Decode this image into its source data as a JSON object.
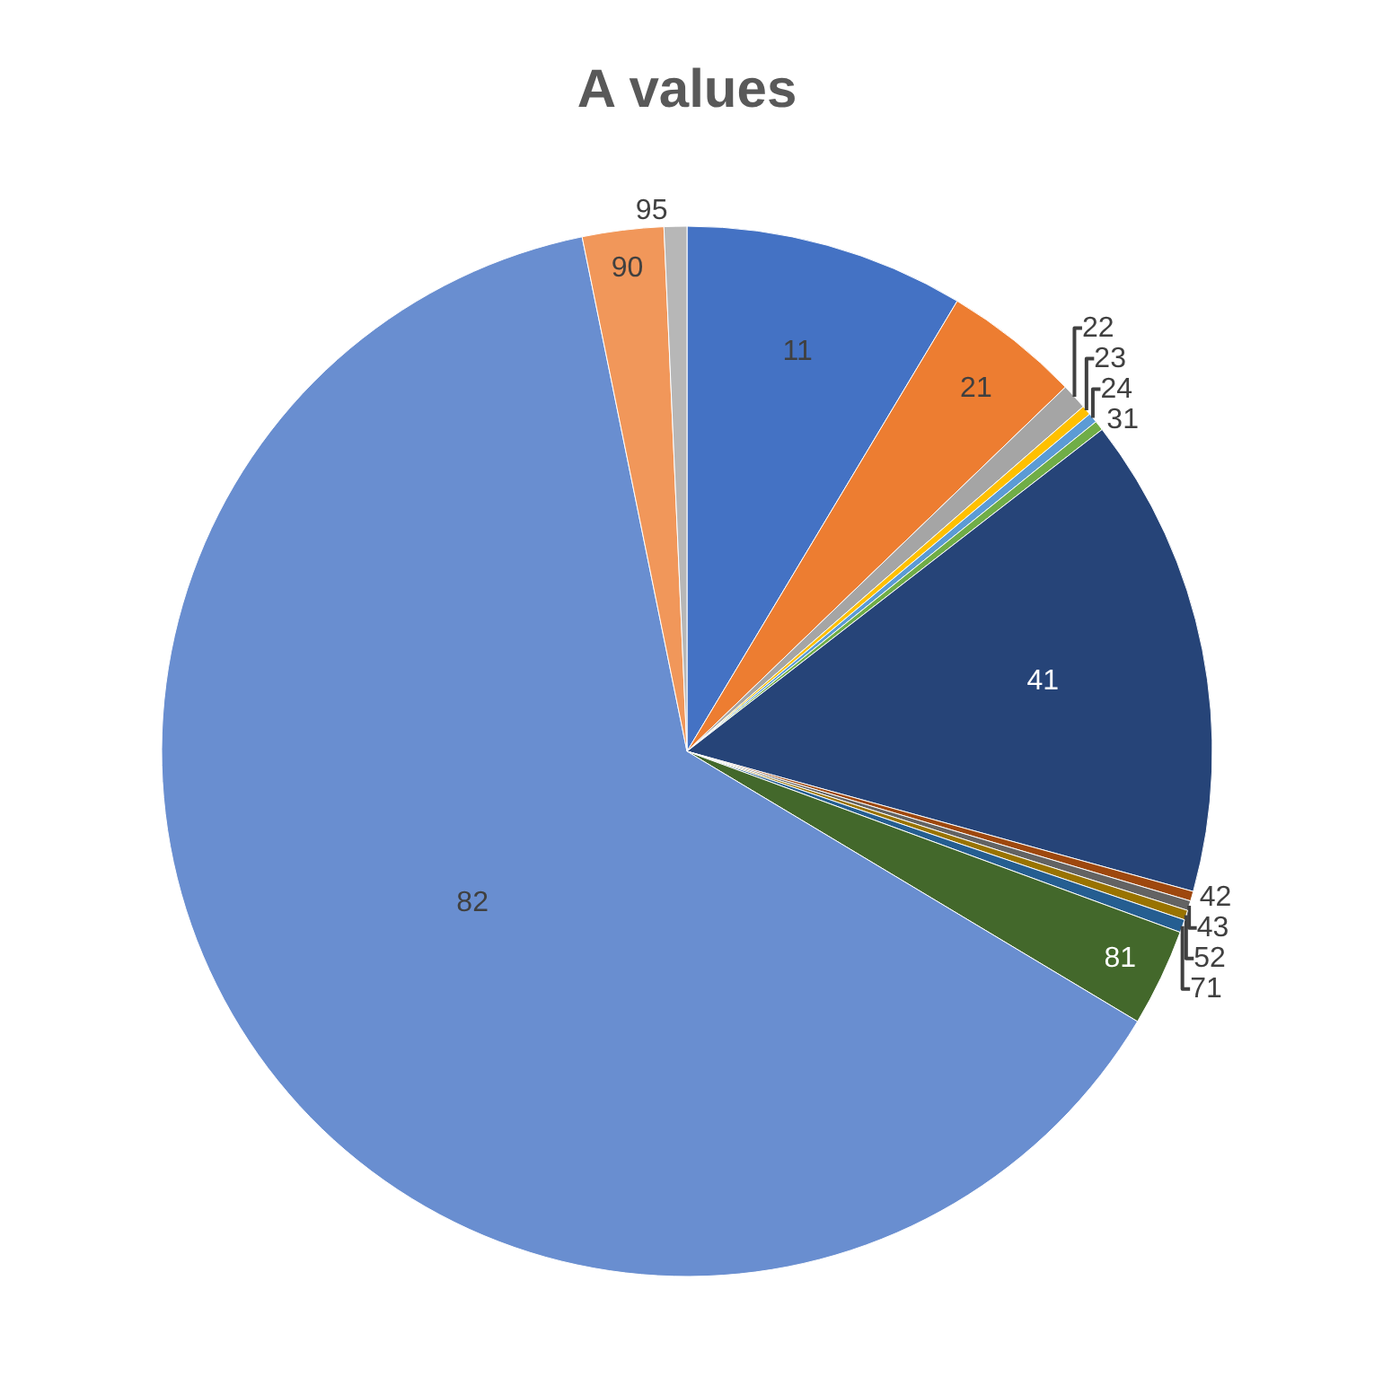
{
  "chart_data": {
    "type": "pie",
    "title": "A values",
    "categories": [
      "11",
      "21",
      "22",
      "23",
      "24",
      "31",
      "41",
      "42",
      "43",
      "52",
      "71",
      "81",
      "82",
      "90",
      "95"
    ],
    "values": [
      8.6,
      4.2,
      0.8,
      0.3,
      0.3,
      0.3,
      14.8,
      0.3,
      0.3,
      0.3,
      0.4,
      3.0,
      63.2,
      2.5,
      0.7
    ],
    "colors": [
      "#4472c4",
      "#ed7d31",
      "#a5a5a5",
      "#ffc000",
      "#5b9bd5",
      "#70ad47",
      "#264478",
      "#9e480e",
      "#636363",
      "#997300",
      "#255e91",
      "#43682b",
      "#698ed0",
      "#f1975a",
      "#b7b7b7"
    ],
    "legend": false
  }
}
